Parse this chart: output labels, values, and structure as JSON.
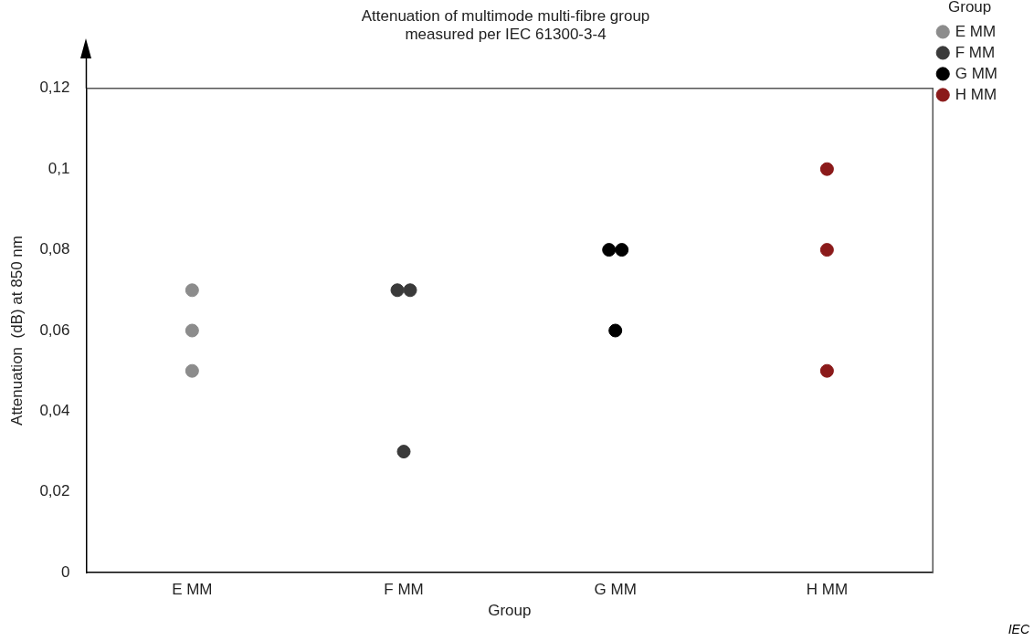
{
  "chart_data": {
    "type": "scatter",
    "title": "Attenuation of multimode multi-fibre group\nmeasured per IEC 61300-3-4",
    "xlabel": "Group",
    "ylabel": "Attenuation  (dB) at 850 nm",
    "legend_title": "Group",
    "categories": [
      "E MM",
      "F MM",
      "G MM",
      "H MM"
    ],
    "series": [
      {
        "name": "E MM",
        "color": "#8c8c8c",
        "x": [
          "E MM",
          "E MM",
          "E MM"
        ],
        "values": [
          0.07,
          0.06,
          0.05
        ]
      },
      {
        "name": "F MM",
        "color": "#3a3a3a",
        "x": [
          "F MM",
          "F MM",
          "F MM"
        ],
        "values": [
          0.07,
          0.07,
          0.03
        ]
      },
      {
        "name": "G MM",
        "color": "#000000",
        "x": [
          "G MM",
          "G MM",
          "G MM"
        ],
        "values": [
          0.08,
          0.08,
          0.06
        ]
      },
      {
        "name": "H MM",
        "color": "#8b1a1a",
        "x": [
          "H MM",
          "H MM",
          "H MM"
        ],
        "values": [
          0.1,
          0.08,
          0.05
        ]
      }
    ],
    "ylim": [
      0,
      0.12
    ],
    "yticks": [
      0,
      {
        "value": 0.02,
        "label": "0,02"
      },
      {
        "value": 0.04,
        "label": "0,04"
      },
      {
        "value": 0.06,
        "label": "0,06"
      },
      {
        "value": 0.08,
        "label": "0,08"
      },
      {
        "value": 0.1,
        "label": "0,1"
      },
      {
        "value": 0.12,
        "label": "0,12"
      }
    ],
    "grid": false,
    "legend": "top right",
    "marker": "circle",
    "annotations": [
      "IEC"
    ]
  }
}
